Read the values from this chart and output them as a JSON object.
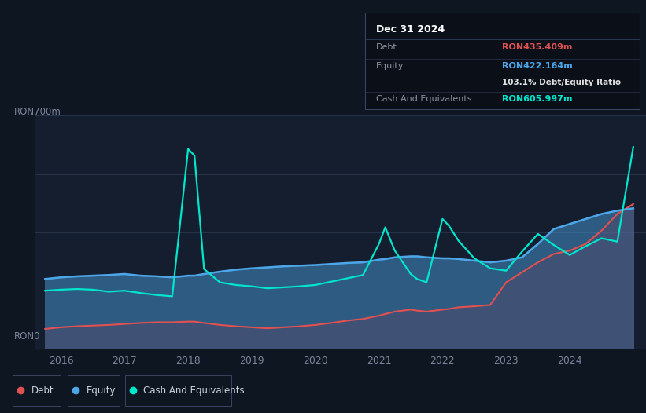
{
  "bg_color": "#0e1621",
  "plot_bg_color": "#141e2e",
  "grid_color": "#2a3550",
  "axis_label_color": "#7a8499",
  "debt_color": "#e05252",
  "equity_color": "#4da6e8",
  "cash_color": "#00e5cc",
  "ylabel_text": "RON700m",
  "y0_text": "RON0",
  "ylim": [
    0,
    700
  ],
  "xlim": [
    2015.6,
    2025.2
  ],
  "x_ticks": [
    2016,
    2017,
    2018,
    2019,
    2020,
    2021,
    2022,
    2023,
    2024
  ],
  "tooltip": {
    "date": "Dec 31 2024",
    "debt_label": "Debt",
    "debt_value": "RON435.409m",
    "equity_label": "Equity",
    "equity_value": "RON422.164m",
    "ratio_text": "103.1% Debt/Equity Ratio",
    "cash_label": "Cash And Equivalents",
    "cash_value": "RON605.997m"
  },
  "dates": [
    2015.75,
    2016.0,
    2016.25,
    2016.5,
    2016.75,
    2017.0,
    2017.25,
    2017.5,
    2017.75,
    2018.0,
    2018.1,
    2018.25,
    2018.5,
    2018.75,
    2019.0,
    2019.25,
    2019.5,
    2019.75,
    2020.0,
    2020.25,
    2020.5,
    2020.75,
    2021.0,
    2021.1,
    2021.25,
    2021.5,
    2021.6,
    2021.75,
    2022.0,
    2022.1,
    2022.25,
    2022.5,
    2022.75,
    2023.0,
    2023.25,
    2023.5,
    2023.75,
    2024.0,
    2024.25,
    2024.5,
    2024.75,
    2025.0
  ],
  "debt": [
    60,
    65,
    68,
    70,
    72,
    75,
    78,
    80,
    80,
    82,
    82,
    78,
    72,
    68,
    65,
    62,
    65,
    68,
    72,
    78,
    85,
    90,
    100,
    105,
    112,
    118,
    115,
    112,
    118,
    120,
    125,
    128,
    132,
    200,
    230,
    260,
    285,
    295,
    315,
    355,
    405,
    435
  ],
  "equity": [
    210,
    215,
    218,
    220,
    222,
    225,
    220,
    218,
    215,
    220,
    220,
    225,
    232,
    238,
    242,
    245,
    248,
    250,
    252,
    255,
    258,
    260,
    268,
    270,
    275,
    278,
    278,
    275,
    272,
    272,
    270,
    265,
    260,
    265,
    275,
    315,
    360,
    375,
    390,
    405,
    415,
    422
  ],
  "cash": [
    175,
    178,
    180,
    178,
    172,
    175,
    168,
    162,
    158,
    600,
    580,
    240,
    200,
    192,
    188,
    182,
    185,
    188,
    192,
    202,
    212,
    222,
    315,
    365,
    295,
    225,
    210,
    200,
    390,
    370,
    325,
    272,
    242,
    235,
    292,
    345,
    312,
    282,
    308,
    332,
    322,
    606
  ]
}
